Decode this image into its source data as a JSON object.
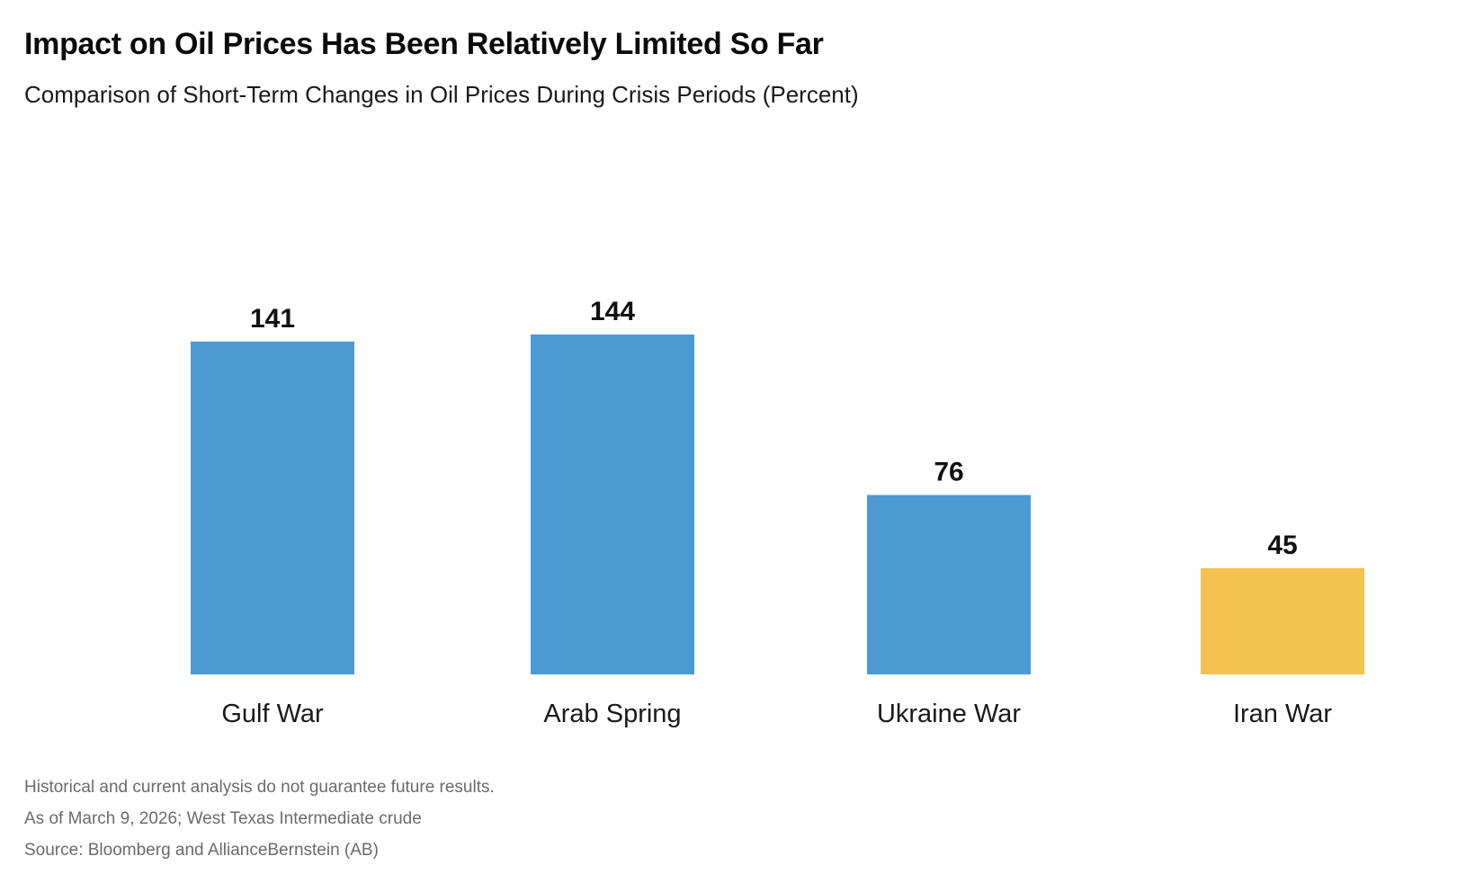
{
  "chart_data": {
    "type": "bar",
    "title": "Impact on Oil Prices Has Been Relatively Limited So Far",
    "subtitle": "Comparison of Short-Term Changes in Oil Prices During Crisis Periods (Percent)",
    "categories": [
      "Gulf War",
      "Arab Spring",
      "Ukraine War",
      "Iran War"
    ],
    "values": [
      141,
      144,
      76,
      45
    ],
    "data_labels": [
      "141",
      "144",
      "76",
      "45"
    ],
    "bar_colors": [
      "#4B9AD4",
      "#4B9AD4",
      "#4B9AD4",
      "#F4C24E"
    ],
    "ylim": [
      0,
      144
    ],
    "grid": false,
    "legend": "none"
  },
  "footnotes": {
    "disclaimer": "Historical and current analysis do not guarantee future results.",
    "as_of": "As of March 9, 2026; West Texas Intermediate crude",
    "source": "Source: Bloomberg and AllianceBernstein (AB)"
  }
}
